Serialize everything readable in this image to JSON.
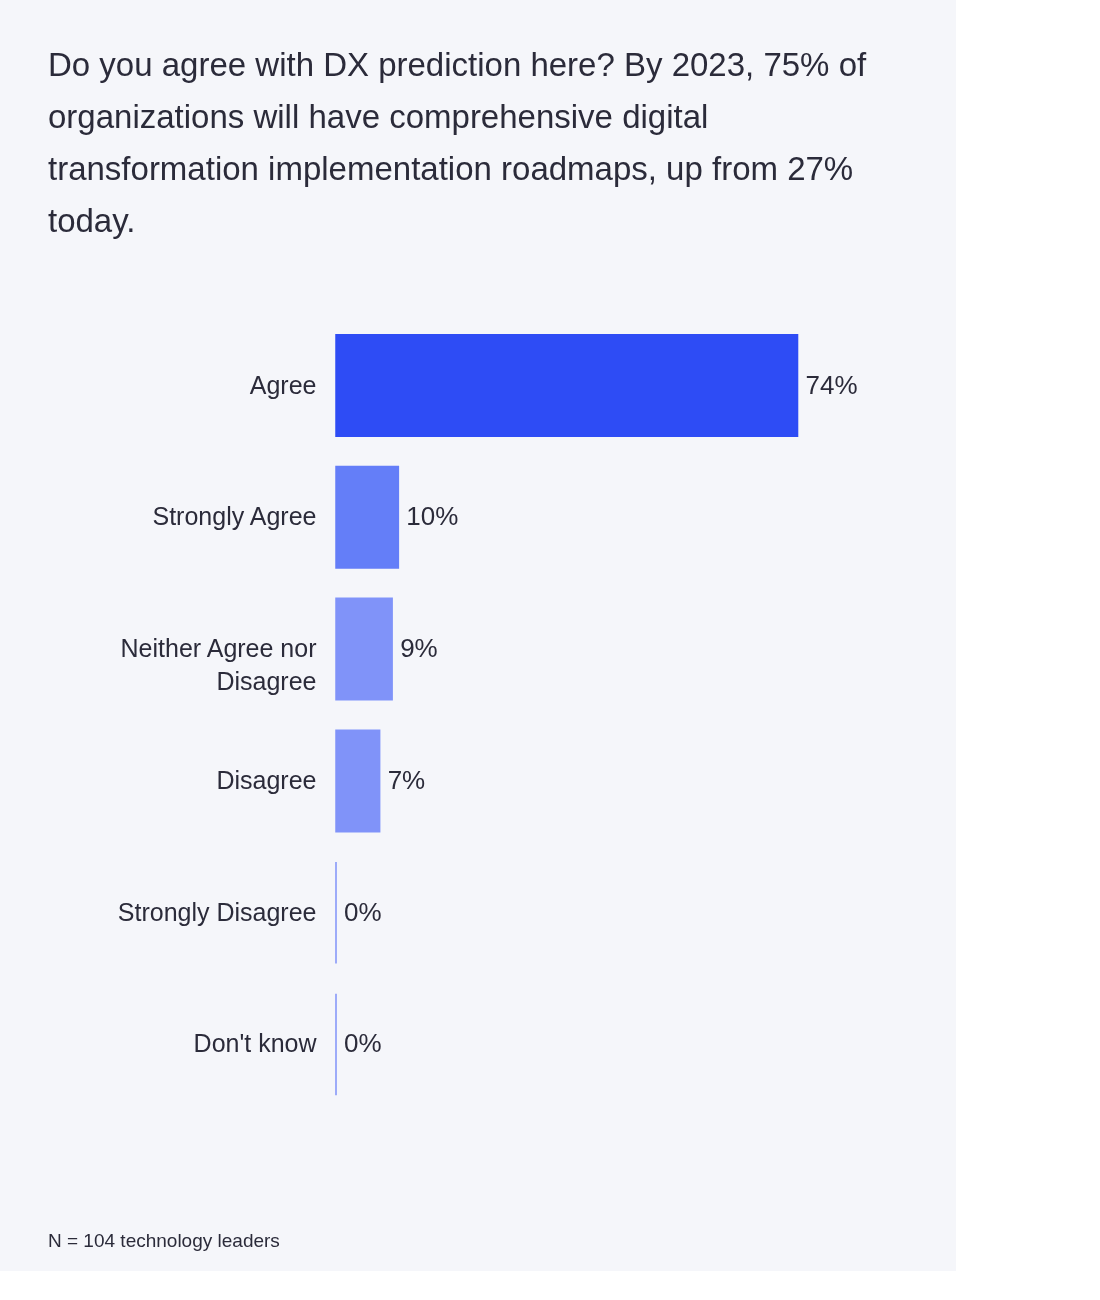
{
  "chart_data": {
    "type": "bar",
    "orientation": "horizontal",
    "title": "Do you agree with DX prediction here? By 2023, 75% of organizations will have comprehensive digital transformation implementation roadmaps, up from 27% today.",
    "categories": [
      "Agree",
      "Strongly Agree",
      "Neither Agree nor Disagree",
      "Disagree",
      "Strongly Disagree",
      "Don't know"
    ],
    "values": [
      74,
      10,
      9,
      7,
      0,
      0
    ],
    "colors": [
      "#2e4cf5",
      "#647ef8",
      "#8093f9",
      "#8093f9",
      "#8093f9",
      "#8093f9"
    ],
    "value_labels": [
      "74%",
      "10%",
      "9%",
      "7%",
      "0%",
      "0%"
    ],
    "annotations": [
      "N = 104 technology leaders"
    ],
    "grid": false
  }
}
